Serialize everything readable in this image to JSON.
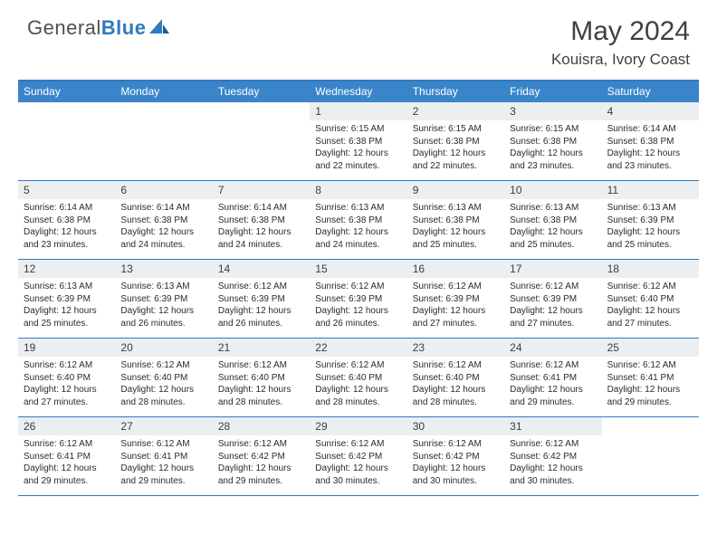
{
  "brand": {
    "part1": "General",
    "part2": "Blue"
  },
  "title": "May 2024",
  "location": "Kouisra, Ivory Coast",
  "colors": {
    "header_bg": "#3a85c9",
    "border": "#2f7bbf",
    "daynum_bg": "#eceff2",
    "text": "#2b2b2b",
    "muted": "#505050"
  },
  "weekdays": [
    "Sunday",
    "Monday",
    "Tuesday",
    "Wednesday",
    "Thursday",
    "Friday",
    "Saturday"
  ],
  "weeks": [
    [
      null,
      null,
      null,
      {
        "n": "1",
        "sunrise": "6:15 AM",
        "sunset": "6:38 PM",
        "daylight": "12 hours and 22 minutes."
      },
      {
        "n": "2",
        "sunrise": "6:15 AM",
        "sunset": "6:38 PM",
        "daylight": "12 hours and 22 minutes."
      },
      {
        "n": "3",
        "sunrise": "6:15 AM",
        "sunset": "6:38 PM",
        "daylight": "12 hours and 23 minutes."
      },
      {
        "n": "4",
        "sunrise": "6:14 AM",
        "sunset": "6:38 PM",
        "daylight": "12 hours and 23 minutes."
      }
    ],
    [
      {
        "n": "5",
        "sunrise": "6:14 AM",
        "sunset": "6:38 PM",
        "daylight": "12 hours and 23 minutes."
      },
      {
        "n": "6",
        "sunrise": "6:14 AM",
        "sunset": "6:38 PM",
        "daylight": "12 hours and 24 minutes."
      },
      {
        "n": "7",
        "sunrise": "6:14 AM",
        "sunset": "6:38 PM",
        "daylight": "12 hours and 24 minutes."
      },
      {
        "n": "8",
        "sunrise": "6:13 AM",
        "sunset": "6:38 PM",
        "daylight": "12 hours and 24 minutes."
      },
      {
        "n": "9",
        "sunrise": "6:13 AM",
        "sunset": "6:38 PM",
        "daylight": "12 hours and 25 minutes."
      },
      {
        "n": "10",
        "sunrise": "6:13 AM",
        "sunset": "6:38 PM",
        "daylight": "12 hours and 25 minutes."
      },
      {
        "n": "11",
        "sunrise": "6:13 AM",
        "sunset": "6:39 PM",
        "daylight": "12 hours and 25 minutes."
      }
    ],
    [
      {
        "n": "12",
        "sunrise": "6:13 AM",
        "sunset": "6:39 PM",
        "daylight": "12 hours and 25 minutes."
      },
      {
        "n": "13",
        "sunrise": "6:13 AM",
        "sunset": "6:39 PM",
        "daylight": "12 hours and 26 minutes."
      },
      {
        "n": "14",
        "sunrise": "6:12 AM",
        "sunset": "6:39 PM",
        "daylight": "12 hours and 26 minutes."
      },
      {
        "n": "15",
        "sunrise": "6:12 AM",
        "sunset": "6:39 PM",
        "daylight": "12 hours and 26 minutes."
      },
      {
        "n": "16",
        "sunrise": "6:12 AM",
        "sunset": "6:39 PM",
        "daylight": "12 hours and 27 minutes."
      },
      {
        "n": "17",
        "sunrise": "6:12 AM",
        "sunset": "6:39 PM",
        "daylight": "12 hours and 27 minutes."
      },
      {
        "n": "18",
        "sunrise": "6:12 AM",
        "sunset": "6:40 PM",
        "daylight": "12 hours and 27 minutes."
      }
    ],
    [
      {
        "n": "19",
        "sunrise": "6:12 AM",
        "sunset": "6:40 PM",
        "daylight": "12 hours and 27 minutes."
      },
      {
        "n": "20",
        "sunrise": "6:12 AM",
        "sunset": "6:40 PM",
        "daylight": "12 hours and 28 minutes."
      },
      {
        "n": "21",
        "sunrise": "6:12 AM",
        "sunset": "6:40 PM",
        "daylight": "12 hours and 28 minutes."
      },
      {
        "n": "22",
        "sunrise": "6:12 AM",
        "sunset": "6:40 PM",
        "daylight": "12 hours and 28 minutes."
      },
      {
        "n": "23",
        "sunrise": "6:12 AM",
        "sunset": "6:40 PM",
        "daylight": "12 hours and 28 minutes."
      },
      {
        "n": "24",
        "sunrise": "6:12 AM",
        "sunset": "6:41 PM",
        "daylight": "12 hours and 29 minutes."
      },
      {
        "n": "25",
        "sunrise": "6:12 AM",
        "sunset": "6:41 PM",
        "daylight": "12 hours and 29 minutes."
      }
    ],
    [
      {
        "n": "26",
        "sunrise": "6:12 AM",
        "sunset": "6:41 PM",
        "daylight": "12 hours and 29 minutes."
      },
      {
        "n": "27",
        "sunrise": "6:12 AM",
        "sunset": "6:41 PM",
        "daylight": "12 hours and 29 minutes."
      },
      {
        "n": "28",
        "sunrise": "6:12 AM",
        "sunset": "6:42 PM",
        "daylight": "12 hours and 29 minutes."
      },
      {
        "n": "29",
        "sunrise": "6:12 AM",
        "sunset": "6:42 PM",
        "daylight": "12 hours and 30 minutes."
      },
      {
        "n": "30",
        "sunrise": "6:12 AM",
        "sunset": "6:42 PM",
        "daylight": "12 hours and 30 minutes."
      },
      {
        "n": "31",
        "sunrise": "6:12 AM",
        "sunset": "6:42 PM",
        "daylight": "12 hours and 30 minutes."
      },
      null
    ]
  ],
  "labels": {
    "sunrise": "Sunrise:",
    "sunset": "Sunset:",
    "daylight": "Daylight:"
  }
}
